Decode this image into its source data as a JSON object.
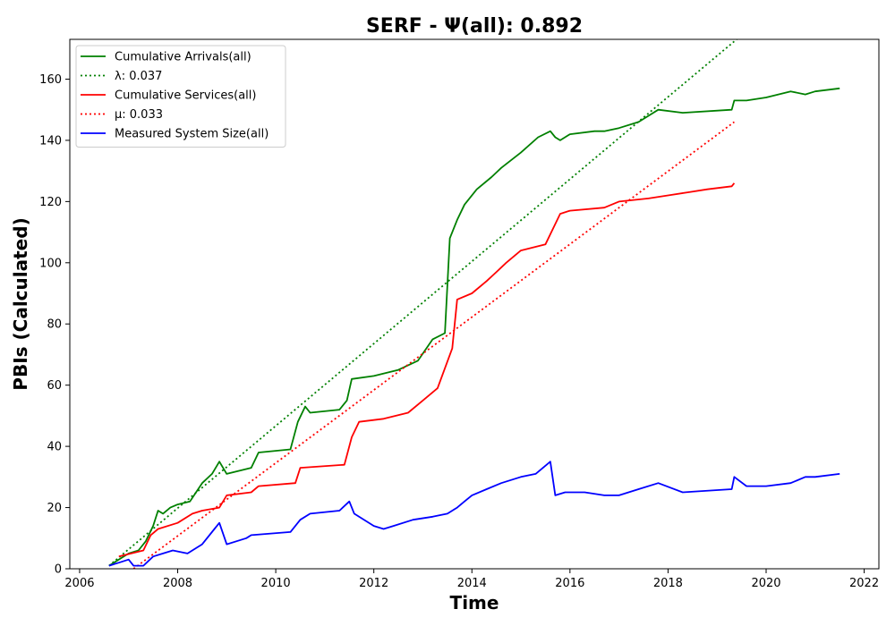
{
  "chart_data": {
    "type": "line",
    "title": "SERF -  Ψ(all): 0.892",
    "xlabel": "Time",
    "ylabel": "PBIs (Calculated)",
    "xlim": [
      2005.8,
      2022.3
    ],
    "ylim": [
      0,
      173
    ],
    "x_ticks": [
      2006,
      2008,
      2010,
      2012,
      2014,
      2016,
      2018,
      2020,
      2022
    ],
    "y_ticks": [
      0,
      20,
      40,
      60,
      80,
      100,
      120,
      140,
      160
    ],
    "grid": false,
    "legend_position": "top-left",
    "series": [
      {
        "name": "Cumulative Arrivals(all)",
        "style": "solid",
        "color": "#008000",
        "x": [
          2006.6,
          2007.0,
          2007.2,
          2007.35,
          2007.5,
          2007.6,
          2007.7,
          2007.85,
          2008.0,
          2008.25,
          2008.5,
          2008.7,
          2008.85,
          2009.0,
          2009.5,
          2009.65,
          2010.3,
          2010.45,
          2010.6,
          2010.7,
          2011.3,
          2011.45,
          2011.55,
          2012.0,
          2012.5,
          2012.9,
          2013.2,
          2013.45,
          2013.55,
          2013.7,
          2013.85,
          2014.1,
          2014.4,
          2014.6,
          2015.0,
          2015.35,
          2015.6,
          2015.7,
          2015.8,
          2016.0,
          2016.5,
          2016.7,
          2017.0,
          2017.4,
          2017.8,
          2018.3,
          2019.3,
          2019.35,
          2019.6,
          2020.0,
          2020.5,
          2020.8,
          2021.0,
          2021.5
        ],
        "values": [
          1,
          5,
          6,
          9,
          14,
          19,
          18,
          20,
          21,
          22,
          28,
          31,
          35,
          31,
          33,
          38,
          39,
          48,
          53,
          51,
          52,
          55,
          62,
          63,
          65,
          68,
          75,
          77,
          108,
          114,
          119,
          124,
          128,
          131,
          136,
          141,
          143,
          141,
          140,
          142,
          143,
          143,
          144,
          146,
          150,
          149,
          150,
          153,
          153,
          154,
          156,
          155,
          156,
          157
        ]
      },
      {
        "name": "λ: 0.037",
        "style": "dotted",
        "color": "#008000",
        "x": [
          2006.6,
          2019.4
        ],
        "values": [
          1,
          173
        ]
      },
      {
        "name": "Cumulative Services(all)",
        "style": "solid",
        "color": "#ff0000",
        "x": [
          2006.8,
          2007.3,
          2007.45,
          2007.6,
          2008.0,
          2008.3,
          2008.5,
          2008.85,
          2009.0,
          2009.5,
          2009.65,
          2010.4,
          2010.5,
          2011.4,
          2011.55,
          2011.7,
          2012.2,
          2012.7,
          2013.0,
          2013.3,
          2013.6,
          2013.7,
          2014.0,
          2014.3,
          2014.5,
          2014.7,
          2015.0,
          2015.5,
          2015.8,
          2016.0,
          2016.7,
          2017.0,
          2017.6,
          2018.0,
          2018.4,
          2018.8,
          2019.3,
          2019.35
        ],
        "values": [
          4,
          6,
          11,
          13,
          15,
          18,
          19,
          20,
          24,
          25,
          27,
          28,
          33,
          34,
          43,
          48,
          49,
          51,
          55,
          59,
          72,
          88,
          90,
          94,
          97,
          100,
          104,
          106,
          116,
          117,
          118,
          120,
          121,
          122,
          123,
          124,
          125,
          126
        ]
      },
      {
        "name": "μ: 0.033",
        "style": "dotted",
        "color": "#ff0000",
        "x": [
          2007.1,
          2019.35
        ],
        "values": [
          0,
          146
        ]
      },
      {
        "name": "Measured System Size(all)",
        "style": "solid",
        "color": "#0000ff",
        "x": [
          2006.6,
          2006.8,
          2007.0,
          2007.1,
          2007.3,
          2007.5,
          2007.7,
          2007.9,
          2008.2,
          2008.5,
          2008.75,
          2008.85,
          2009.0,
          2009.4,
          2009.5,
          2010.3,
          2010.5,
          2010.7,
          2011.3,
          2011.5,
          2011.6,
          2012.0,
          2012.2,
          2012.4,
          2012.8,
          2013.2,
          2013.5,
          2013.7,
          2013.85,
          2014.0,
          2014.3,
          2014.6,
          2015.0,
          2015.3,
          2015.6,
          2015.7,
          2015.9,
          2016.3,
          2016.7,
          2017.0,
          2017.4,
          2017.8,
          2018.3,
          2019.3,
          2019.35,
          2019.6,
          2020.0,
          2020.5,
          2020.8,
          2021.0,
          2021.5
        ],
        "values": [
          1,
          2,
          3,
          1,
          1,
          4,
          5,
          6,
          5,
          8,
          13,
          15,
          8,
          10,
          11,
          12,
          16,
          18,
          19,
          22,
          18,
          14,
          13,
          14,
          16,
          17,
          18,
          20,
          22,
          24,
          26,
          28,
          30,
          31,
          35,
          24,
          25,
          25,
          24,
          24,
          26,
          28,
          25,
          26,
          30,
          27,
          27,
          28,
          30,
          30,
          31
        ]
      }
    ]
  }
}
